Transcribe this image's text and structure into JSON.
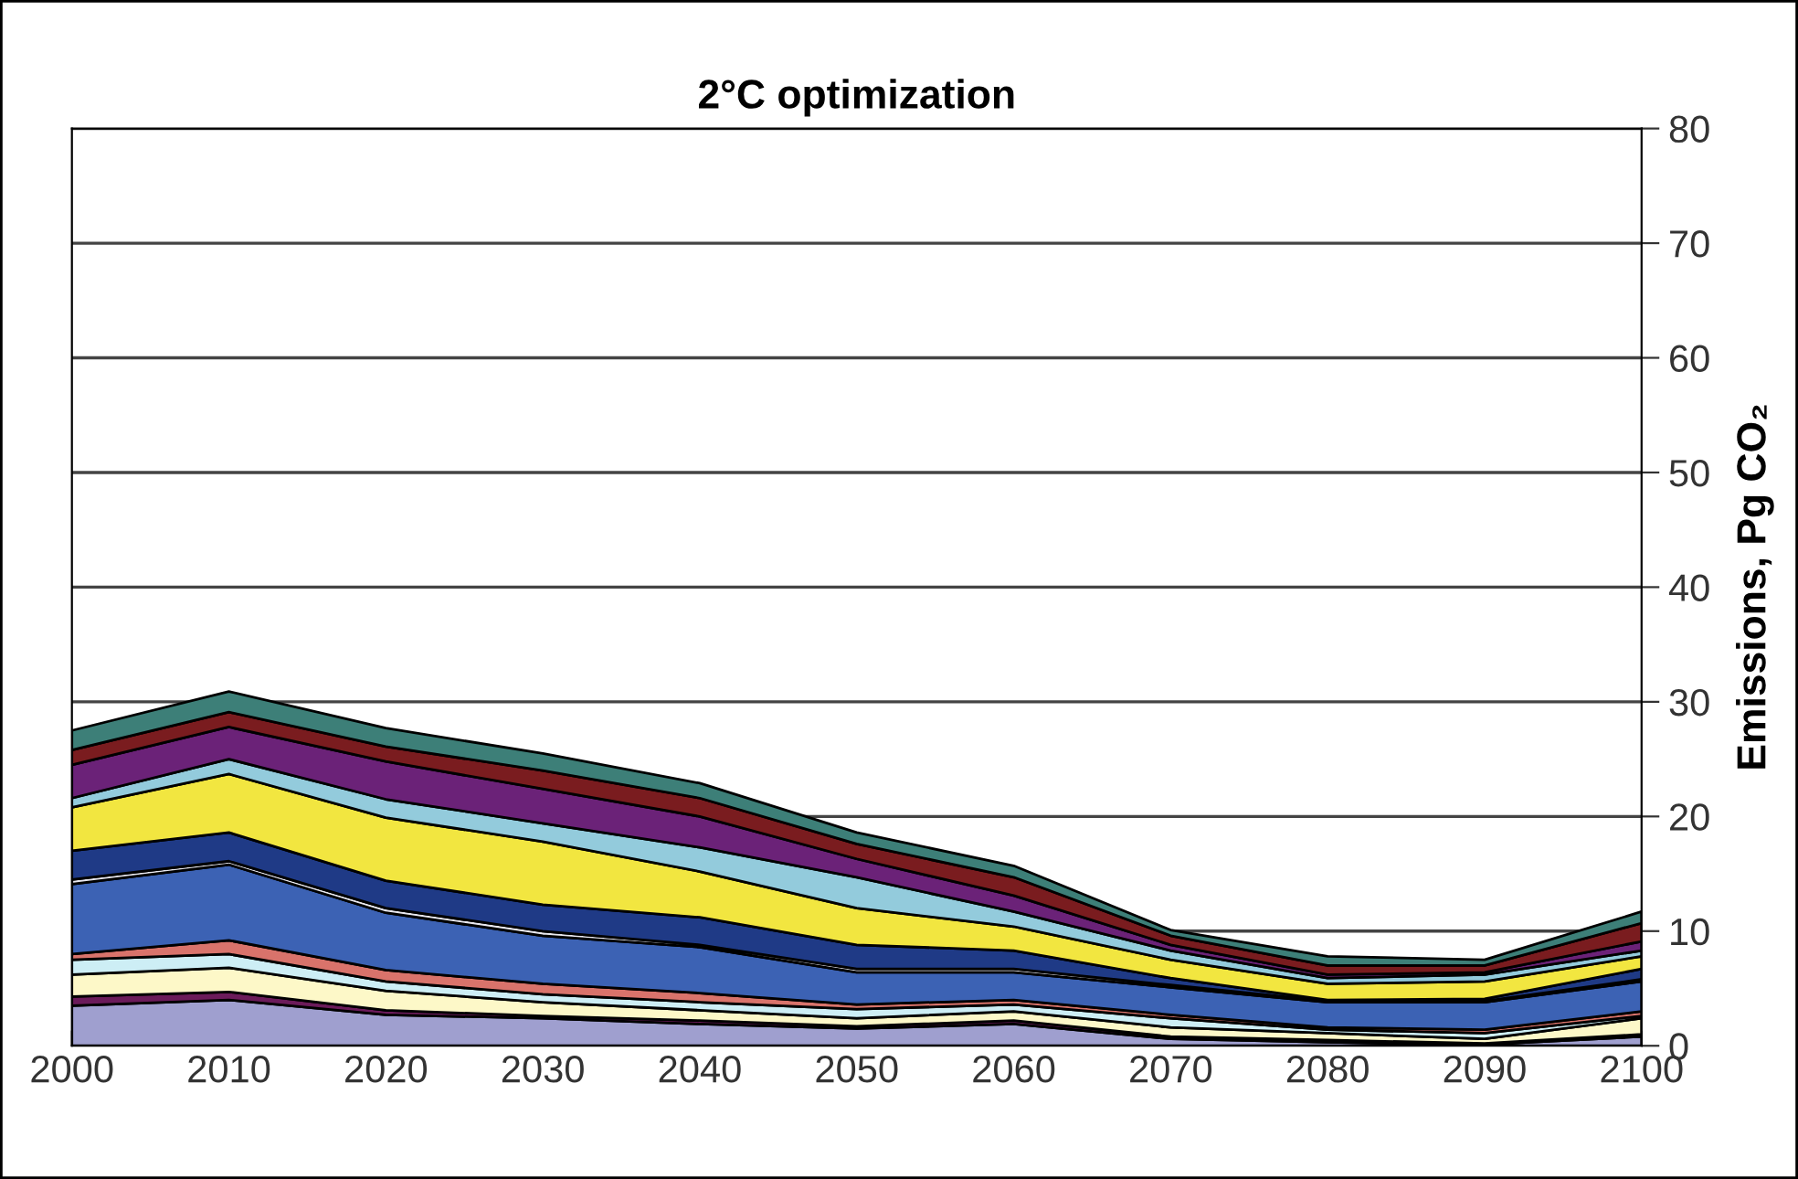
{
  "chart_data": {
    "type": "area",
    "stacked": true,
    "title": "2°C optimization",
    "ylabel": "Emissions, Pg CO₂",
    "x": [
      2000,
      2010,
      2020,
      2030,
      2040,
      2050,
      2060,
      2070,
      2080,
      2090,
      2100
    ],
    "xlim": [
      2000,
      2100
    ],
    "xticks": [
      2000,
      2010,
      2020,
      2030,
      2040,
      2050,
      2060,
      2070,
      2080,
      2090,
      2100
    ],
    "ylim": [
      0,
      80
    ],
    "yticks": [
      0,
      10,
      20,
      30,
      40,
      50,
      60,
      70,
      80
    ],
    "grid": "y",
    "legend": false,
    "series": [
      {
        "color": "#9f9fcf",
        "values": [
          3.5,
          4.0,
          2.7,
          2.4,
          1.9,
          1.5,
          1.9,
          0.6,
          0.3,
          0.1,
          0.8
        ]
      },
      {
        "color": "#6b1b5a",
        "values": [
          0.8,
          0.7,
          0.4,
          0.2,
          0.3,
          0.2,
          0.3,
          0.2,
          0.2,
          0.1,
          0.2
        ]
      },
      {
        "color": "#fdf8c8",
        "values": [
          1.9,
          2.1,
          1.7,
          1.2,
          0.9,
          0.7,
          0.8,
          0.8,
          0.6,
          0.4,
          1.4
        ]
      },
      {
        "color": "#cdeef5",
        "values": [
          1.3,
          1.2,
          0.8,
          0.7,
          0.7,
          0.8,
          0.6,
          0.8,
          0.3,
          0.5,
          0.2
        ]
      },
      {
        "color": "#d9736b",
        "values": [
          0.5,
          1.2,
          1.0,
          0.9,
          0.8,
          0.4,
          0.4,
          0.3,
          0.2,
          0.3,
          0.4
        ]
      },
      {
        "color": "#3c62b4",
        "values": [
          6.1,
          6.6,
          5.0,
          4.2,
          4.0,
          2.8,
          2.4,
          2.4,
          2.2,
          2.4,
          2.6
        ]
      },
      {
        "color": "#e8e8f0",
        "values": [
          0.4,
          0.3,
          0.4,
          0.4,
          0.2,
          0.3,
          0.3,
          0.2,
          0.1,
          0.1,
          0.2
        ]
      },
      {
        "color": "#1f3a86",
        "values": [
          2.5,
          2.5,
          2.4,
          2.3,
          2.4,
          2.1,
          1.6,
          0.6,
          0.1,
          0.2,
          0.9
        ]
      },
      {
        "color": "#f2e640",
        "values": [
          3.8,
          5.1,
          5.5,
          5.5,
          4.0,
          3.2,
          2.1,
          1.6,
          1.4,
          1.5,
          1.1
        ]
      },
      {
        "color": "#93cbdc",
        "values": [
          0.8,
          1.3,
          1.6,
          1.6,
          2.1,
          2.7,
          1.3,
          0.8,
          0.5,
          0.6,
          0.5
        ]
      },
      {
        "color": "#6b2278",
        "values": [
          2.9,
          2.8,
          3.3,
          3.0,
          2.7,
          1.6,
          1.4,
          0.5,
          0.3,
          0.2,
          0.8
        ]
      },
      {
        "color": "#7a1c1f",
        "values": [
          1.3,
          1.3,
          1.3,
          1.6,
          1.6,
          1.3,
          1.6,
          0.8,
          0.8,
          0.6,
          1.6
        ]
      },
      {
        "color": "#3d7f78",
        "values": [
          1.7,
          1.8,
          1.6,
          1.5,
          1.3,
          1.0,
          1.0,
          0.5,
          0.8,
          0.5,
          1.0
        ]
      }
    ]
  }
}
